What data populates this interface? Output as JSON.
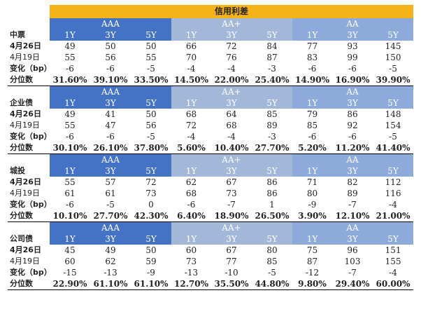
{
  "title": "信用利差",
  "ratings": [
    "AAA",
    "AA+",
    "AA"
  ],
  "tenors": [
    "1Y",
    "3Y",
    "5Y"
  ],
  "sections": [
    {
      "name": "中票",
      "rows": [
        {
          "label": "4月26日",
          "values": [
            "49",
            "50",
            "50",
            "66",
            "72",
            "84",
            "77",
            "93",
            "145"
          ]
        },
        {
          "label": "4月19日",
          "values": [
            "55",
            "56",
            "55",
            "70",
            "76",
            "87",
            "83",
            "99",
            "150"
          ]
        },
        {
          "label": "变化（bp）",
          "values": [
            "-6",
            "-6",
            "-5",
            "-4",
            "-4",
            "-3",
            "-6",
            "-6",
            "-5"
          ]
        },
        {
          "label": "分位数",
          "values": [
            "31.60%",
            "39.10%",
            "33.50%",
            "14.50%",
            "22.00%",
            "25.40%",
            "14.90%",
            "16.90%",
            "39.90%"
          ]
        }
      ]
    },
    {
      "name": "企业债",
      "rows": [
        {
          "label": "4月26日",
          "values": [
            "49",
            "41",
            "50",
            "68",
            "64",
            "85",
            "79",
            "86",
            "148"
          ]
        },
        {
          "label": "4月19日",
          "values": [
            "55",
            "47",
            "56",
            "72",
            "68",
            "89",
            "85",
            "92",
            "154"
          ]
        },
        {
          "label": "变化（bp）",
          "values": [
            "-6",
            "-6",
            "-5",
            "-4",
            "-4",
            "-3",
            "-6",
            "-6",
            "-5"
          ]
        },
        {
          "label": "分位数",
          "values": [
            "30.10%",
            "26.10%",
            "37.80%",
            "5.60%",
            "10.40%",
            "27.70%",
            "5.20%",
            "11.20%",
            "41.40%"
          ]
        }
      ]
    },
    {
      "name": "城投",
      "rows": [
        {
          "label": "4月26日",
          "values": [
            "55",
            "57",
            "72",
            "62",
            "67",
            "86",
            "71",
            "82",
            "112"
          ]
        },
        {
          "label": "4月19日",
          "values": [
            "61",
            "61",
            "73",
            "68",
            "73",
            "86",
            "80",
            "89",
            "116"
          ]
        },
        {
          "label": "变化（bp）",
          "values": [
            "-6",
            "-5",
            "0",
            "-6",
            "-7",
            "1",
            "-9",
            "-7",
            "-4"
          ]
        },
        {
          "label": "分位数",
          "values": [
            "10.10%",
            "27.70%",
            "42.30%",
            "6.40%",
            "18.90%",
            "26.50%",
            "3.90%",
            "12.10%",
            "21.00%"
          ]
        }
      ]
    },
    {
      "name": "公司债",
      "rows": [
        {
          "label": "4月26日",
          "values": [
            "45",
            "49",
            "50",
            "60",
            "67",
            "80",
            "75",
            "96",
            "151"
          ]
        },
        {
          "label": "4月19日",
          "values": [
            "60",
            "62",
            "59",
            "73",
            "77",
            "85",
            "87",
            "103",
            "155"
          ]
        },
        {
          "label": "变化（bp）",
          "values": [
            "-15",
            "-13",
            "-9",
            "-13",
            "-10",
            "-5",
            "-12",
            "-7",
            "-4"
          ]
        },
        {
          "label": "分位数",
          "values": [
            "22.90%",
            "61.10%",
            "61.10%",
            "12.70%",
            "35.50%",
            "44.80%",
            "9.80%",
            "29.40%",
            "60.00%"
          ]
        }
      ]
    }
  ],
  "colors": {
    "title_bg": "#f5b31a",
    "aaa_bg": "#4472c4",
    "aaplus_bg": "#a3b8d9",
    "aa_bg": "#8eaadb"
  }
}
